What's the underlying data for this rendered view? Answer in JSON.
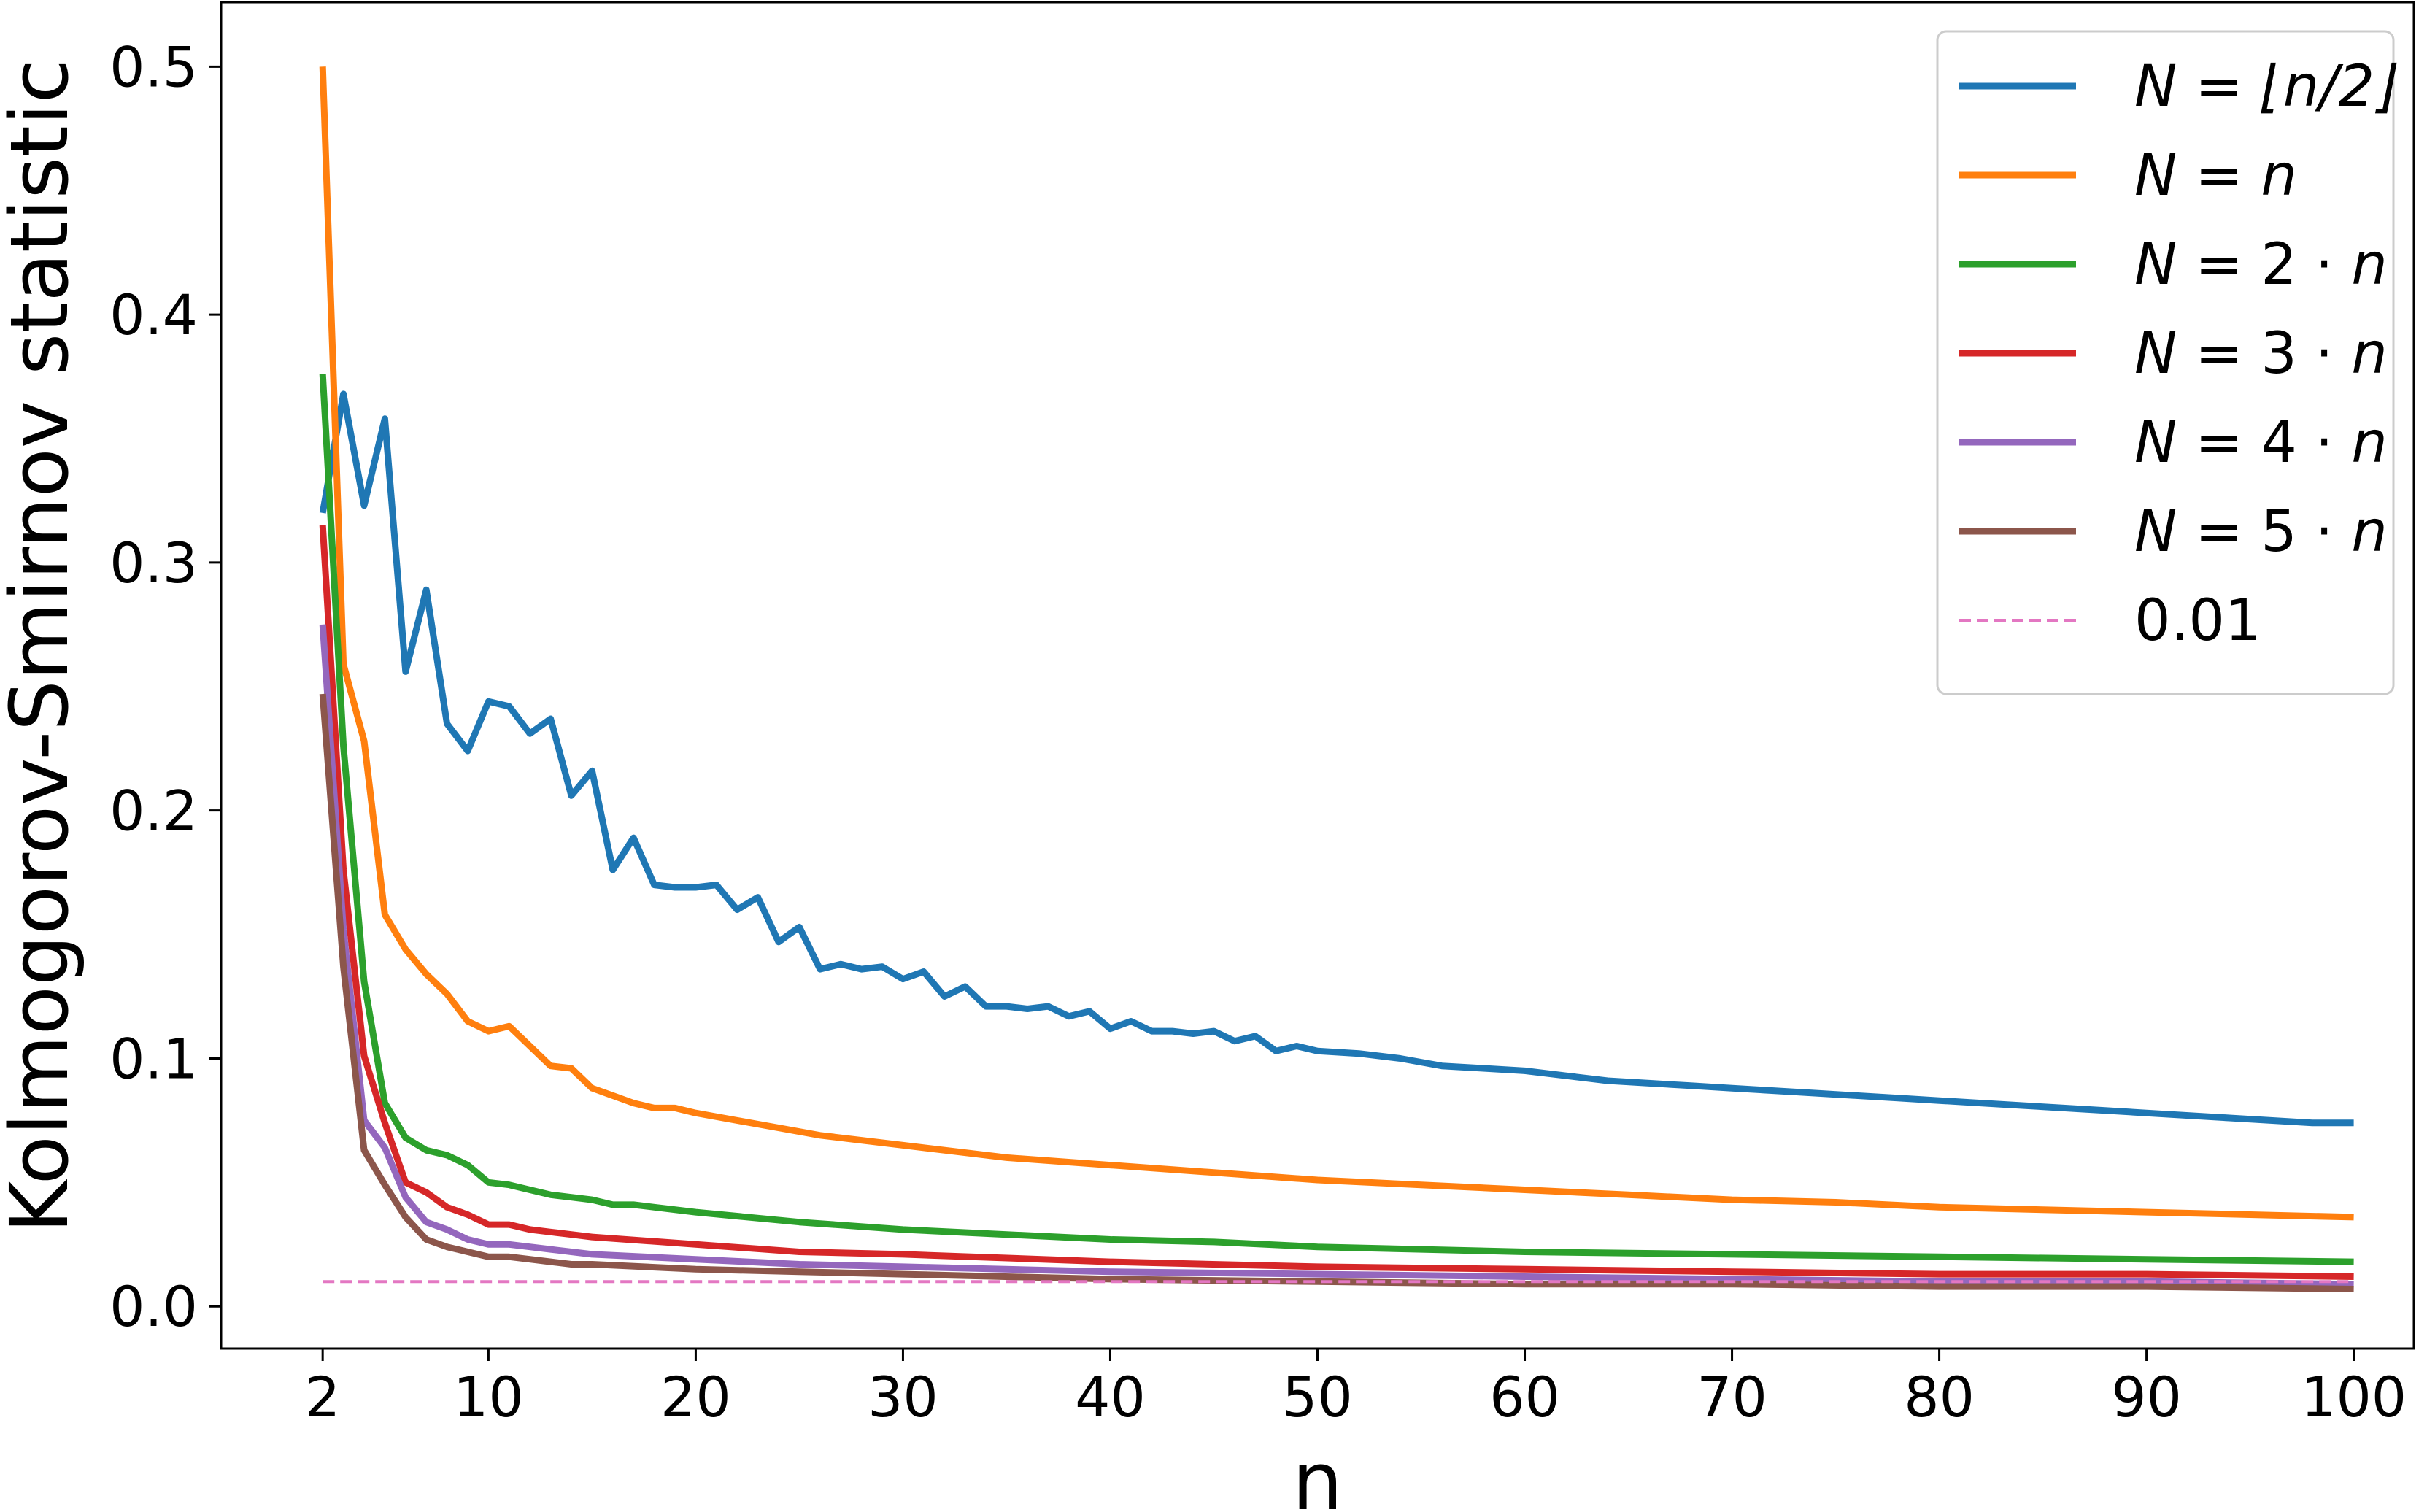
{
  "chart_data": {
    "type": "line",
    "title": "",
    "xlabel": "n",
    "ylabel": "Kolmogorov-Smirnov statistic",
    "xlim": [
      -2.9,
      102.9
    ],
    "ylim": [
      -0.017,
      0.526
    ],
    "xticks": [
      {
        "value": 2,
        "label": "2"
      },
      {
        "value": 10,
        "label": "10"
      },
      {
        "value": 20,
        "label": "20"
      },
      {
        "value": 30,
        "label": "30"
      },
      {
        "value": 40,
        "label": "40"
      },
      {
        "value": 50,
        "label": "50"
      },
      {
        "value": 60,
        "label": "60"
      },
      {
        "value": 70,
        "label": "70"
      },
      {
        "value": 80,
        "label": "80"
      },
      {
        "value": 90,
        "label": "90"
      },
      {
        "value": 100,
        "label": "100"
      }
    ],
    "yticks": [
      {
        "value": 0.0,
        "label": "0.0"
      },
      {
        "value": 0.1,
        "label": "0.1"
      },
      {
        "value": 0.2,
        "label": "0.2"
      },
      {
        "value": 0.3,
        "label": "0.3"
      },
      {
        "value": 0.4,
        "label": "0.4"
      },
      {
        "value": 0.5,
        "label": "0.5"
      }
    ],
    "grid": false,
    "legend_position": "top-right",
    "series": [
      {
        "name": "N = ⌊n/2⌋",
        "color": "#1f77b4",
        "style": "solid",
        "points": [
          [
            2,
            0.32
          ],
          [
            3,
            0.368
          ],
          [
            4,
            0.323
          ],
          [
            5,
            0.358
          ],
          [
            6,
            0.256
          ],
          [
            7,
            0.289
          ],
          [
            8,
            0.235
          ],
          [
            9,
            0.224
          ],
          [
            10,
            0.244
          ],
          [
            11,
            0.242
          ],
          [
            12,
            0.231
          ],
          [
            13,
            0.237
          ],
          [
            14,
            0.206
          ],
          [
            15,
            0.216
          ],
          [
            16,
            0.176
          ],
          [
            17,
            0.189
          ],
          [
            18,
            0.17
          ],
          [
            19,
            0.169
          ],
          [
            20,
            0.169
          ],
          [
            21,
            0.17
          ],
          [
            22,
            0.16
          ],
          [
            23,
            0.165
          ],
          [
            24,
            0.147
          ],
          [
            25,
            0.153
          ],
          [
            26,
            0.136
          ],
          [
            27,
            0.138
          ],
          [
            28,
            0.136
          ],
          [
            29,
            0.137
          ],
          [
            30,
            0.132
          ],
          [
            31,
            0.135
          ],
          [
            32,
            0.125
          ],
          [
            33,
            0.129
          ],
          [
            34,
            0.121
          ],
          [
            35,
            0.121
          ],
          [
            36,
            0.12
          ],
          [
            37,
            0.121
          ],
          [
            38,
            0.117
          ],
          [
            39,
            0.119
          ],
          [
            40,
            0.112
          ],
          [
            41,
            0.115
          ],
          [
            42,
            0.111
          ],
          [
            43,
            0.111
          ],
          [
            44,
            0.11
          ],
          [
            45,
            0.111
          ],
          [
            46,
            0.107
          ],
          [
            47,
            0.109
          ],
          [
            48,
            0.103
          ],
          [
            49,
            0.105
          ],
          [
            50,
            0.103
          ],
          [
            52,
            0.102
          ],
          [
            54,
            0.1
          ],
          [
            56,
            0.097
          ],
          [
            58,
            0.096
          ],
          [
            60,
            0.095
          ],
          [
            62,
            0.093
          ],
          [
            64,
            0.091
          ],
          [
            66,
            0.09
          ],
          [
            68,
            0.089
          ],
          [
            70,
            0.088
          ],
          [
            72,
            0.087
          ],
          [
            74,
            0.086
          ],
          [
            76,
            0.085
          ],
          [
            78,
            0.084
          ],
          [
            80,
            0.083
          ],
          [
            82,
            0.082
          ],
          [
            84,
            0.081
          ],
          [
            86,
            0.08
          ],
          [
            88,
            0.079
          ],
          [
            90,
            0.078
          ],
          [
            92,
            0.077
          ],
          [
            94,
            0.076
          ],
          [
            96,
            0.075
          ],
          [
            98,
            0.074
          ],
          [
            100,
            0.074
          ]
        ]
      },
      {
        "name": "N = n",
        "color": "#ff7f0e",
        "style": "solid",
        "points": [
          [
            2,
            0.5
          ],
          [
            3,
            0.259
          ],
          [
            4,
            0.228
          ],
          [
            5,
            0.158
          ],
          [
            6,
            0.144
          ],
          [
            7,
            0.134
          ],
          [
            8,
            0.126
          ],
          [
            9,
            0.115
          ],
          [
            10,
            0.111
          ],
          [
            11,
            0.113
          ],
          [
            12,
            0.105
          ],
          [
            13,
            0.097
          ],
          [
            14,
            0.096
          ],
          [
            15,
            0.088
          ],
          [
            16,
            0.085
          ],
          [
            17,
            0.082
          ],
          [
            18,
            0.08
          ],
          [
            19,
            0.08
          ],
          [
            20,
            0.078
          ],
          [
            22,
            0.075
          ],
          [
            24,
            0.072
          ],
          [
            26,
            0.069
          ],
          [
            28,
            0.067
          ],
          [
            30,
            0.065
          ],
          [
            35,
            0.06
          ],
          [
            40,
            0.057
          ],
          [
            45,
            0.054
          ],
          [
            50,
            0.051
          ],
          [
            55,
            0.049
          ],
          [
            60,
            0.047
          ],
          [
            65,
            0.045
          ],
          [
            70,
            0.043
          ],
          [
            75,
            0.042
          ],
          [
            80,
            0.04
          ],
          [
            85,
            0.039
          ],
          [
            90,
            0.038
          ],
          [
            95,
            0.037
          ],
          [
            100,
            0.036
          ]
        ]
      },
      {
        "name": "N = 2·n",
        "color": "#2ca02c",
        "style": "solid",
        "points": [
          [
            2,
            0.376
          ],
          [
            3,
            0.226
          ],
          [
            4,
            0.131
          ],
          [
            5,
            0.082
          ],
          [
            6,
            0.068
          ],
          [
            7,
            0.063
          ],
          [
            8,
            0.061
          ],
          [
            9,
            0.057
          ],
          [
            10,
            0.05
          ],
          [
            11,
            0.049
          ],
          [
            12,
            0.047
          ],
          [
            13,
            0.045
          ],
          [
            14,
            0.044
          ],
          [
            15,
            0.043
          ],
          [
            16,
            0.041
          ],
          [
            17,
            0.041
          ],
          [
            18,
            0.04
          ],
          [
            20,
            0.038
          ],
          [
            25,
            0.034
          ],
          [
            30,
            0.031
          ],
          [
            35,
            0.029
          ],
          [
            40,
            0.027
          ],
          [
            45,
            0.026
          ],
          [
            50,
            0.024
          ],
          [
            60,
            0.022
          ],
          [
            70,
            0.021
          ],
          [
            80,
            0.02
          ],
          [
            90,
            0.019
          ],
          [
            100,
            0.018
          ]
        ]
      },
      {
        "name": "N = 3·n",
        "color": "#d62728",
        "style": "solid",
        "points": [
          [
            2,
            0.315
          ],
          [
            3,
            0.176
          ],
          [
            4,
            0.101
          ],
          [
            5,
            0.074
          ],
          [
            6,
            0.05
          ],
          [
            7,
            0.046
          ],
          [
            8,
            0.04
          ],
          [
            9,
            0.037
          ],
          [
            10,
            0.033
          ],
          [
            11,
            0.033
          ],
          [
            12,
            0.031
          ],
          [
            13,
            0.03
          ],
          [
            14,
            0.029
          ],
          [
            15,
            0.028
          ],
          [
            20,
            0.025
          ],
          [
            25,
            0.022
          ],
          [
            30,
            0.021
          ],
          [
            40,
            0.018
          ],
          [
            50,
            0.016
          ],
          [
            60,
            0.015
          ],
          [
            70,
            0.014
          ],
          [
            80,
            0.013
          ],
          [
            90,
            0.013
          ],
          [
            100,
            0.012
          ]
        ]
      },
      {
        "name": "N = 4·n",
        "color": "#9467bd",
        "style": "solid",
        "points": [
          [
            2,
            0.275
          ],
          [
            3,
            0.152
          ],
          [
            4,
            0.075
          ],
          [
            5,
            0.064
          ],
          [
            6,
            0.044
          ],
          [
            7,
            0.034
          ],
          [
            8,
            0.031
          ],
          [
            9,
            0.027
          ],
          [
            10,
            0.025
          ],
          [
            11,
            0.025
          ],
          [
            12,
            0.024
          ],
          [
            13,
            0.023
          ],
          [
            14,
            0.022
          ],
          [
            15,
            0.021
          ],
          [
            20,
            0.019
          ],
          [
            25,
            0.017
          ],
          [
            30,
            0.016
          ],
          [
            40,
            0.014
          ],
          [
            50,
            0.013
          ],
          [
            60,
            0.012
          ],
          [
            70,
            0.011
          ],
          [
            80,
            0.01
          ],
          [
            90,
            0.01
          ],
          [
            100,
            0.009
          ]
        ]
      },
      {
        "name": "N = 5·n",
        "color": "#8c564b",
        "style": "solid",
        "points": [
          [
            2,
            0.247
          ],
          [
            3,
            0.137
          ],
          [
            4,
            0.063
          ],
          [
            5,
            0.049
          ],
          [
            6,
            0.036
          ],
          [
            7,
            0.027
          ],
          [
            8,
            0.024
          ],
          [
            9,
            0.022
          ],
          [
            10,
            0.02
          ],
          [
            11,
            0.02
          ],
          [
            12,
            0.019
          ],
          [
            13,
            0.018
          ],
          [
            14,
            0.017
          ],
          [
            15,
            0.017
          ],
          [
            20,
            0.015
          ],
          [
            25,
            0.014
          ],
          [
            30,
            0.013
          ],
          [
            40,
            0.011
          ],
          [
            50,
            0.01
          ],
          [
            60,
            0.009
          ],
          [
            70,
            0.009
          ],
          [
            80,
            0.008
          ],
          [
            90,
            0.008
          ],
          [
            100,
            0.007
          ]
        ]
      },
      {
        "name": "0.01",
        "color": "#e377c2",
        "style": "dashed",
        "points": [
          [
            2,
            0.01
          ],
          [
            100,
            0.01
          ]
        ]
      }
    ],
    "legend": [
      {
        "series": 0,
        "parts": [
          {
            "t": "N",
            "math": true
          },
          {
            "t": " = ",
            "math": false
          },
          {
            "t": "⌊n/2⌋",
            "math": true
          }
        ]
      },
      {
        "series": 1,
        "parts": [
          {
            "t": "N",
            "math": true
          },
          {
            "t": " = ",
            "math": false
          },
          {
            "t": "n",
            "math": true
          }
        ]
      },
      {
        "series": 2,
        "parts": [
          {
            "t": "N",
            "math": true
          },
          {
            "t": " = 2 · ",
            "math": false
          },
          {
            "t": "n",
            "math": true
          }
        ]
      },
      {
        "series": 3,
        "parts": [
          {
            "t": "N",
            "math": true
          },
          {
            "t": " = 3 · ",
            "math": false
          },
          {
            "t": "n",
            "math": true
          }
        ]
      },
      {
        "series": 4,
        "parts": [
          {
            "t": "N",
            "math": true
          },
          {
            "t": " = 4 · ",
            "math": false
          },
          {
            "t": "n",
            "math": true
          }
        ]
      },
      {
        "series": 5,
        "parts": [
          {
            "t": "N",
            "math": true
          },
          {
            "t": " = 5 · ",
            "math": false
          },
          {
            "t": "n",
            "math": true
          }
        ]
      },
      {
        "series": 6,
        "parts": [
          {
            "t": "0.01",
            "math": false
          }
        ]
      }
    ]
  }
}
